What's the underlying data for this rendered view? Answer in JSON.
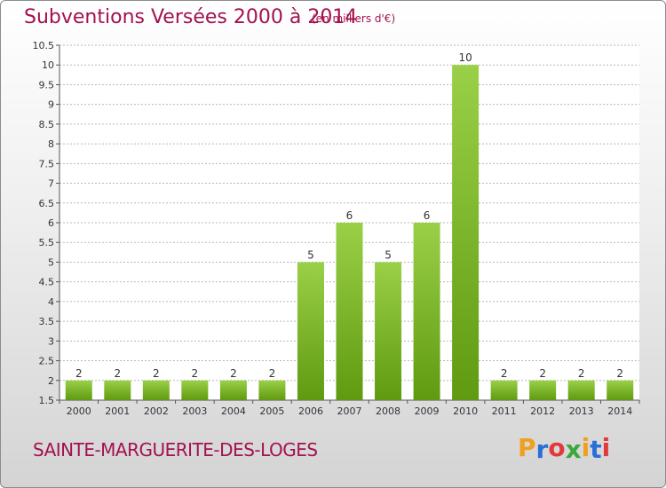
{
  "header": {
    "title": "Subventions Versées 2000 à 2014",
    "subtitle": "(en milliers d'€)"
  },
  "footer": {
    "commune": "SAINTE-MARGUERITE-DES-LOGES",
    "logo": {
      "letters": [
        "P",
        "r",
        "o",
        "x",
        "i",
        "t",
        "i"
      ],
      "colors": [
        "#f0a020",
        "#2a6fd6",
        "#e23a3a",
        "#3aa83a",
        "#f0a020",
        "#2a6fd6",
        "#e23a3a"
      ]
    }
  },
  "colors": {
    "title": "#a3124f",
    "bar_light": "#9ad047",
    "bar_dark": "#5f9a10",
    "grid": "#b8b8b8"
  },
  "chart_data": {
    "type": "bar",
    "title": "Subventions Versées 2000 à 2014",
    "categories": [
      "2000",
      "2001",
      "2002",
      "2003",
      "2004",
      "2005",
      "2006",
      "2007",
      "2008",
      "2009",
      "2010",
      "2011",
      "2012",
      "2013",
      "2014"
    ],
    "values": [
      2,
      2,
      2,
      2,
      2,
      2,
      5,
      6,
      5,
      6,
      10,
      2,
      2,
      2,
      2
    ],
    "data_labels": [
      "2",
      "2",
      "2",
      "2",
      "2",
      "2",
      "5",
      "6",
      "5",
      "6",
      "10",
      "2",
      "2",
      "2",
      "2"
    ],
    "ylim": [
      1.5,
      10.5
    ],
    "yticks": [
      1.5,
      2,
      2.5,
      3,
      3.5,
      4,
      4.5,
      5,
      5.5,
      6,
      6.5,
      7,
      7.5,
      8,
      8.5,
      9,
      9.5,
      10,
      10.5
    ],
    "ytick_labels": [
      "1.5",
      "2",
      "2.5",
      "3",
      "3.5",
      "4",
      "4.5",
      "5",
      "5.5",
      "6",
      "6.5",
      "7",
      "7.5",
      "8",
      "8.5",
      "9",
      "9.5",
      "10",
      "10.5"
    ],
    "grid": true,
    "xlabel": "",
    "ylabel": ""
  }
}
